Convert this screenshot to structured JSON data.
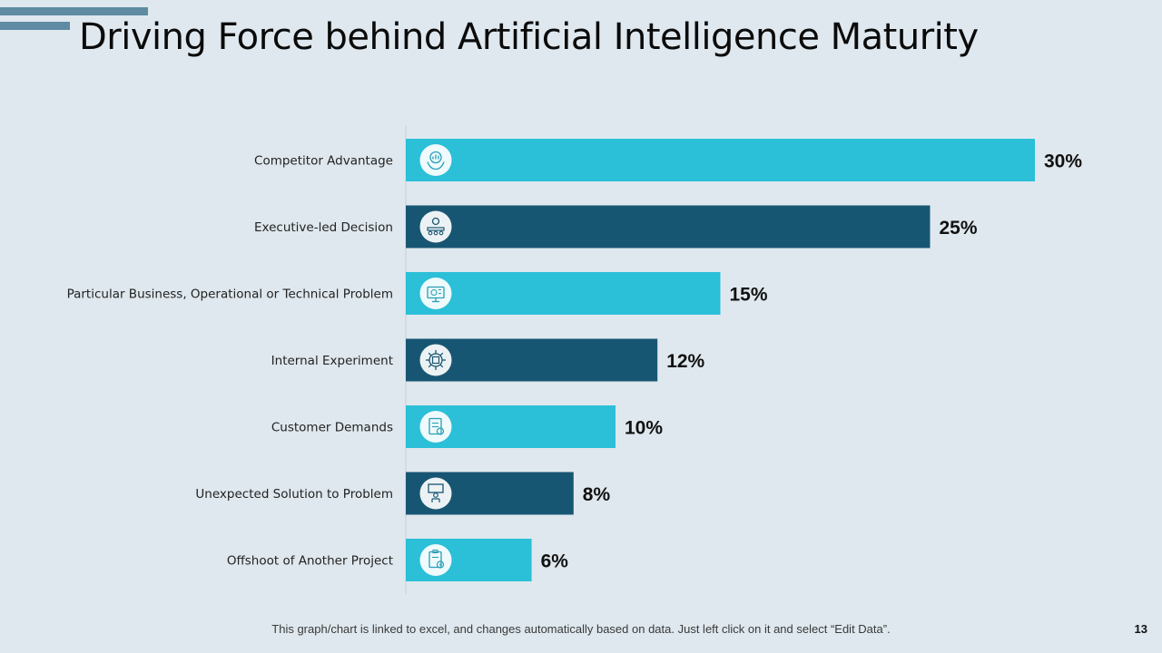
{
  "title": "Driving Force behind Artificial Intelligence Maturity",
  "footer_note": "This graph/chart is linked to excel, and changes automatically based on data.  Just left click on it and select “Edit Data”.",
  "page_number": "13",
  "colors": {
    "light": "#2bbfd8",
    "dark": "#175673",
    "axis": "#c8cfd4",
    "label": "#222222",
    "value": "#111111"
  },
  "chart_data": {
    "type": "bar",
    "orientation": "horizontal",
    "title": "Driving Force behind Artificial Intelligence Maturity",
    "xlabel": "",
    "ylabel": "",
    "xlim": [
      0,
      30
    ],
    "categories": [
      "Competitor Advantage",
      "Executive-led Decision",
      "Particular Business, Operational or Technical Problem",
      "Internal Experiment",
      "Customer Demands",
      "Unexpected Solution to Problem",
      "Offshoot of Another Project"
    ],
    "values": [
      30,
      25,
      15,
      12,
      10,
      8,
      6
    ],
    "value_labels": [
      "30%",
      "25%",
      "15%",
      "12%",
      "10%",
      "8%",
      "6%"
    ],
    "icons": [
      "hands-chart-icon",
      "team-meeting-icon",
      "monitor-analytics-icon",
      "gear-chip-icon",
      "checklist-document-icon",
      "presentation-board-icon",
      "clipboard-gear-icon"
    ],
    "bar_colors": [
      "light",
      "dark",
      "light",
      "dark",
      "light",
      "dark",
      "light"
    ]
  }
}
